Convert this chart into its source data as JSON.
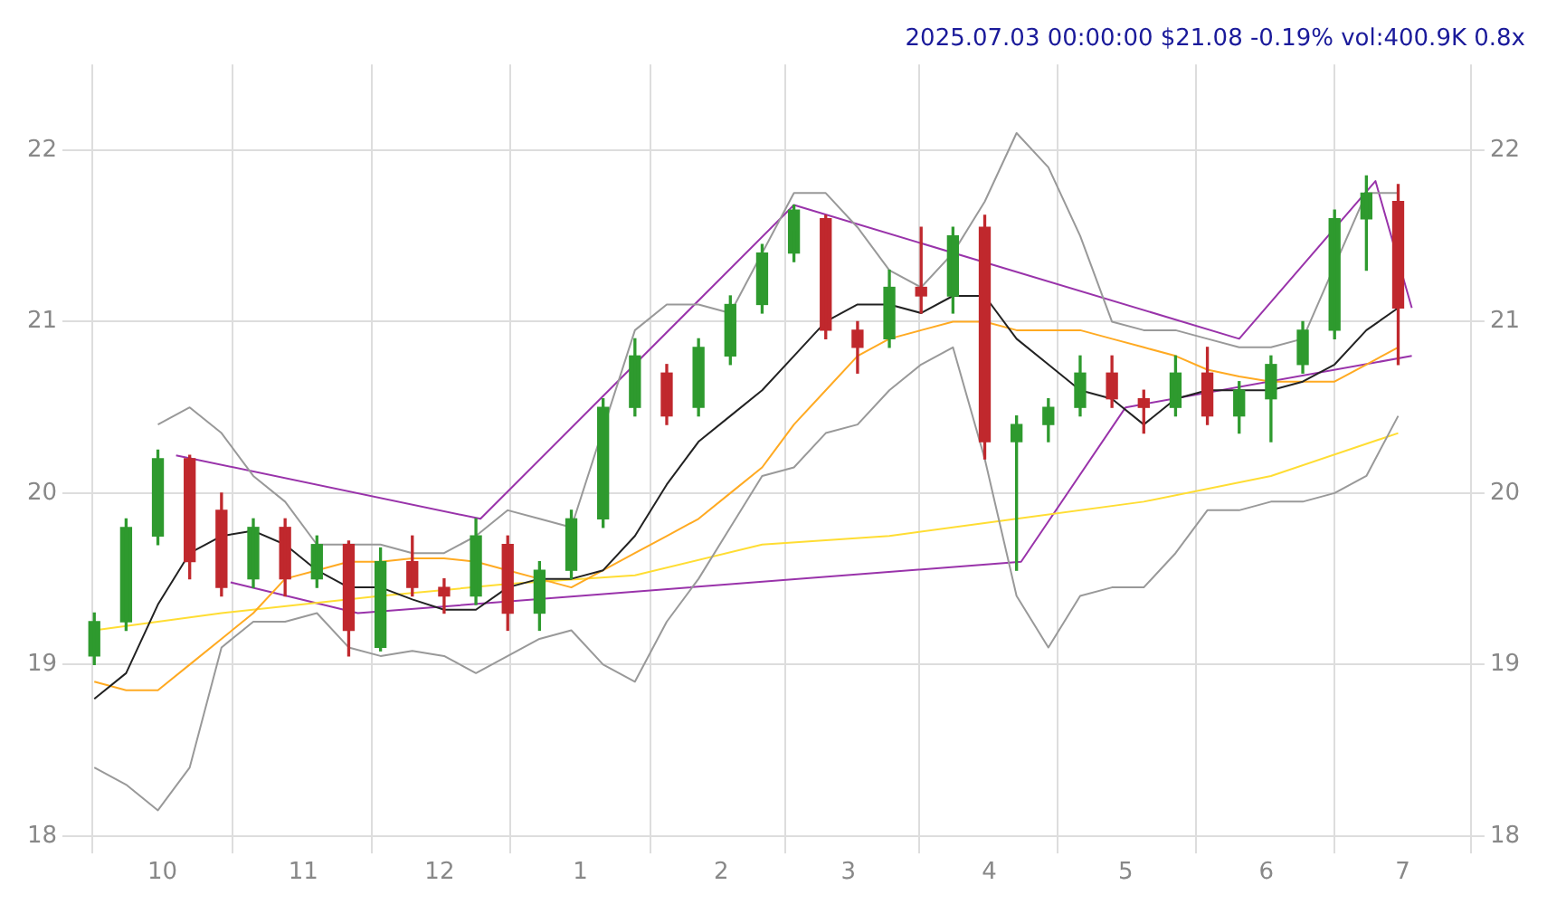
{
  "chart_data": {
    "type": "candlestick",
    "title": "2025.07.03 00:00:00 $21.08 -0.19% vol:400.9K 0.8x",
    "x": [
      "2024-09-16",
      "2024-09-23",
      "2024-09-30",
      "2024-10-07",
      "2024-10-14",
      "2024-10-21",
      "2024-10-28",
      "2024-11-04",
      "2024-11-11",
      "2024-11-18",
      "2024-11-25",
      "2024-12-02",
      "2024-12-09",
      "2024-12-16",
      "2024-12-23",
      "2024-12-30",
      "2025-01-06",
      "2025-01-13",
      "2025-01-20",
      "2025-01-27",
      "2025-02-03",
      "2025-02-10",
      "2025-02-17",
      "2025-02-24",
      "2025-03-03",
      "2025-03-10",
      "2025-03-17",
      "2025-03-24",
      "2025-03-31",
      "2025-04-07",
      "2025-04-14",
      "2025-04-21",
      "2025-04-28",
      "2025-05-05",
      "2025-05-12",
      "2025-05-19",
      "2025-05-26",
      "2025-06-02",
      "2025-06-09",
      "2025-06-16",
      "2025-06-23",
      "2025-06-30"
    ],
    "ohlc": [
      [
        19.05,
        19.3,
        19.0,
        19.25
      ],
      [
        19.25,
        19.85,
        19.2,
        19.8
      ],
      [
        19.75,
        20.25,
        19.7,
        20.2
      ],
      [
        20.2,
        20.22,
        19.5,
        19.6
      ],
      [
        19.9,
        20.0,
        19.4,
        19.45
      ],
      [
        19.5,
        19.85,
        19.45,
        19.8
      ],
      [
        19.8,
        19.85,
        19.4,
        19.5
      ],
      [
        19.5,
        19.75,
        19.45,
        19.7
      ],
      [
        19.7,
        19.72,
        19.05,
        19.2
      ],
      [
        19.1,
        19.68,
        19.08,
        19.6
      ],
      [
        19.6,
        19.75,
        19.4,
        19.45
      ],
      [
        19.45,
        19.5,
        19.3,
        19.4
      ],
      [
        19.4,
        19.85,
        19.35,
        19.75
      ],
      [
        19.7,
        19.75,
        19.2,
        19.3
      ],
      [
        19.3,
        19.6,
        19.2,
        19.55
      ],
      [
        19.55,
        19.9,
        19.5,
        19.85
      ],
      [
        19.85,
        20.55,
        19.8,
        20.5
      ],
      [
        20.5,
        20.9,
        20.45,
        20.8
      ],
      [
        20.7,
        20.75,
        20.4,
        20.45
      ],
      [
        20.5,
        20.9,
        20.45,
        20.85
      ],
      [
        20.8,
        21.15,
        20.75,
        21.1
      ],
      [
        21.1,
        21.45,
        21.05,
        21.4
      ],
      [
        21.4,
        21.68,
        21.35,
        21.65
      ],
      [
        21.6,
        21.62,
        20.9,
        20.95
      ],
      [
        20.95,
        21.0,
        20.7,
        20.85
      ],
      [
        20.9,
        21.3,
        20.85,
        21.2
      ],
      [
        21.2,
        21.55,
        21.05,
        21.15
      ],
      [
        21.15,
        21.55,
        21.05,
        21.5
      ],
      [
        21.55,
        21.62,
        20.2,
        20.3
      ],
      [
        20.3,
        20.45,
        19.55,
        20.4
      ],
      [
        20.4,
        20.55,
        20.3,
        20.5
      ],
      [
        20.5,
        20.8,
        20.45,
        20.7
      ],
      [
        20.7,
        20.8,
        20.5,
        20.55
      ],
      [
        20.55,
        20.6,
        20.35,
        20.5
      ],
      [
        20.5,
        20.8,
        20.45,
        20.7
      ],
      [
        20.7,
        20.85,
        20.4,
        20.45
      ],
      [
        20.45,
        20.65,
        20.35,
        20.6
      ],
      [
        20.55,
        20.8,
        20.3,
        20.75
      ],
      [
        20.75,
        21.0,
        20.7,
        20.95
      ],
      [
        20.95,
        21.65,
        20.9,
        21.6
      ],
      [
        21.6,
        21.85,
        21.3,
        21.75
      ],
      [
        21.7,
        21.8,
        20.75,
        21.08
      ]
    ],
    "colors": [
      "#2e9a2e",
      "#2e9a2e",
      "#2e9a2e",
      "#c0282d",
      "#c0282d",
      "#2e9a2e",
      "#c0282d",
      "#2e9a2e",
      "#c0282d",
      "#2e9a2e",
      "#c0282d",
      "#c0282d",
      "#2e9a2e",
      "#c0282d",
      "#2e9a2e",
      "#2e9a2e",
      "#2e9a2e",
      "#2e9a2e",
      "#c0282d",
      "#2e9a2e",
      "#2e9a2e",
      "#2e9a2e",
      "#2e9a2e",
      "#c0282d",
      "#c0282d",
      "#2e9a2e",
      "#c0282d",
      "#2e9a2e",
      "#c0282d",
      "#2e9a2e",
      "#2e9a2e",
      "#2e9a2e",
      "#c0282d",
      "#c0282d",
      "#2e9a2e",
      "#c0282d",
      "#2e9a2e",
      "#2e9a2e",
      "#2e9a2e",
      "#2e9a2e",
      "#2e9a2e",
      "#c0282d"
    ],
    "series": [
      {
        "type": "line",
        "color": "#222222",
        "values": [
          18.8,
          18.95,
          19.35,
          19.65,
          19.75,
          19.78,
          19.7,
          19.55,
          19.45,
          19.45,
          19.38,
          19.32,
          19.32,
          19.45,
          19.5,
          19.5,
          19.55,
          19.75,
          20.05,
          20.3,
          20.45,
          20.6,
          20.8,
          21.0,
          21.1,
          21.1,
          21.05,
          21.15,
          21.15,
          20.9,
          20.75,
          20.6,
          20.55,
          20.4,
          20.55,
          20.6,
          20.6,
          20.6,
          20.65,
          20.75,
          20.95,
          21.08
        ]
      },
      {
        "type": "line",
        "color": "#999999",
        "values": [
          null,
          null,
          20.4,
          20.5,
          20.35,
          20.1,
          19.95,
          19.7,
          19.7,
          19.7,
          19.65,
          19.65,
          19.75,
          19.9,
          19.85,
          19.8,
          null,
          20.95,
          21.1,
          21.1,
          21.05,
          null,
          21.75,
          21.75,
          21.55,
          21.3,
          21.2,
          21.4,
          21.7,
          22.1,
          21.9,
          21.5,
          21.0,
          20.95,
          20.95,
          20.9,
          20.85,
          20.85,
          20.9,
          null,
          21.75,
          21.75
        ]
      },
      {
        "type": "line",
        "color": "#999999",
        "values": [
          18.4,
          18.3,
          18.15,
          18.4,
          19.1,
          19.25,
          19.25,
          19.3,
          19.1,
          19.05,
          19.08,
          19.05,
          18.95,
          19.05,
          19.15,
          19.2,
          19.0,
          18.9,
          19.25,
          19.5,
          19.8,
          20.1,
          20.15,
          20.35,
          20.4,
          20.6,
          20.75,
          20.85,
          20.2,
          19.4,
          19.1,
          19.4,
          19.45,
          19.45,
          19.65,
          19.9,
          19.9,
          19.95,
          19.95,
          20.0,
          20.1,
          20.45
        ]
      },
      {
        "type": "line",
        "color": "#ffaa22",
        "values": [
          18.9,
          18.85,
          18.85,
          19.0,
          19.15,
          19.3,
          19.5,
          19.55,
          19.6,
          19.6,
          19.62,
          19.62,
          19.6,
          19.55,
          19.5,
          19.45,
          19.55,
          19.65,
          19.75,
          19.85,
          20.0,
          20.15,
          20.4,
          20.6,
          20.8,
          20.9,
          20.95,
          21.0,
          21.0,
          20.95,
          20.95,
          20.95,
          20.9,
          20.85,
          20.8,
          20.72,
          20.68,
          20.65,
          20.65,
          20.65,
          20.75,
          20.85
        ]
      },
      {
        "type": "line",
        "color": "#ffdd33",
        "x": [
          "2024-09-16",
          "2024-10-14",
          "2024-11-18",
          "2024-12-16",
          "2025-01-13",
          "2025-02-10",
          "2025-03-10",
          "2025-04-07",
          "2025-05-05",
          "2025-06-02",
          "2025-06-30"
        ],
        "values": [
          19.2,
          19.3,
          19.4,
          19.47,
          19.52,
          19.7,
          19.75,
          19.85,
          19.95,
          20.1,
          20.35
        ]
      },
      {
        "type": "line",
        "color": "#9933aa",
        "x": [
          "2024-10-04",
          "2024-12-10",
          "2025-02-17",
          "2025-05-26",
          "2025-06-25",
          "2025-07-03"
        ],
        "values": [
          20.22,
          19.85,
          21.68,
          20.9,
          21.82,
          21.08
        ]
      },
      {
        "type": "line",
        "color": "#9933aa",
        "x": [
          "2024-10-16",
          "2024-11-13",
          "2025-04-08",
          "2025-05-01",
          "2025-07-03"
        ],
        "values": [
          19.48,
          19.3,
          19.6,
          20.5,
          20.8
        ]
      }
    ],
    "xlim": [
      "2024-09-09",
      "2025-07-19"
    ],
    "xticks": [
      {
        "value": "2024-10-01",
        "label": "10"
      },
      {
        "value": "2024-11-01",
        "label": "11"
      },
      {
        "value": "2024-12-01",
        "label": "12"
      },
      {
        "value": "2025-01-01",
        "label": "1"
      },
      {
        "value": "2025-02-01",
        "label": "2"
      },
      {
        "value": "2025-03-01",
        "label": "3"
      },
      {
        "value": "2025-04-01",
        "label": "4"
      },
      {
        "value": "2025-05-01",
        "label": "5"
      },
      {
        "value": "2025-06-01",
        "label": "6"
      },
      {
        "value": "2025-07-01",
        "label": "7"
      }
    ],
    "ylim": [
      17.9,
      22.5
    ],
    "yticks": [
      18,
      19,
      20,
      21,
      22
    ],
    "y2lim": [
      17.9,
      22.5
    ],
    "y2ticks": [
      18,
      19,
      20,
      21,
      22
    ],
    "grid": true,
    "legend": false
  }
}
